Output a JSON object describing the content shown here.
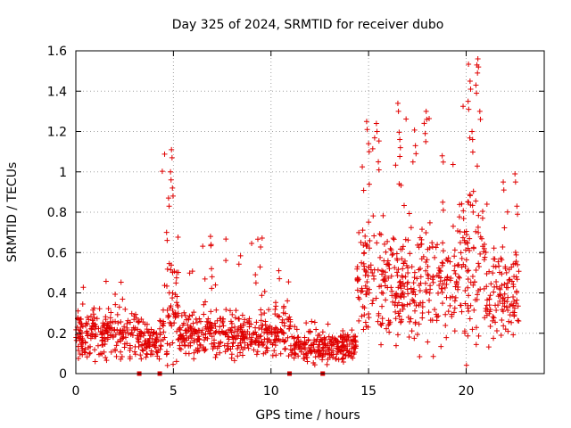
{
  "chart_data": {
    "type": "scatter",
    "title": "Day 325 of 2024, SRMTID for receiver dubo",
    "xlabel": "GPS time / hours",
    "ylabel": "SRMTID / TECUs",
    "xlim": [
      0,
      24
    ],
    "ylim": [
      0,
      1.6
    ],
    "grid": true,
    "x_ticks": [
      0,
      5,
      10,
      15,
      20
    ],
    "x_tick_labels": [
      "0",
      "5",
      "10",
      "15",
      "20"
    ],
    "y_ticks": [
      0,
      0.2,
      0.4,
      0.6,
      0.8,
      1.0,
      1.2,
      1.4,
      1.6
    ],
    "y_tick_labels": [
      "0",
      "0.2",
      "0.4",
      "0.6",
      "0.8",
      "1",
      "1.2",
      "1.4",
      "1.6"
    ],
    "marker": "plus",
    "series": [
      {
        "name": "SRMTID",
        "color": "#e00000",
        "envelope": {
          "description": "Approximate distribution of the plotted points (hour ranges with typical and peak values)",
          "segments": [
            {
              "x_range": [
                0.0,
                3.3
              ],
              "base": 0.2,
              "spread": 0.09,
              "peak": 0.47
            },
            {
              "x_range": [
                3.3,
                4.4
              ],
              "base": 0.15,
              "spread": 0.06,
              "peak": 0.27
            },
            {
              "x_range": [
                4.4,
                5.3
              ],
              "base": 0.3,
              "spread": 0.2,
              "peak": 1.11
            },
            {
              "x_range": [
                5.3,
                10.0
              ],
              "base": 0.19,
              "spread": 0.08,
              "peak": 0.68
            },
            {
              "x_range": [
                10.0,
                11.0
              ],
              "base": 0.2,
              "spread": 0.09,
              "peak": 0.51
            },
            {
              "x_range": [
                11.0,
                14.4
              ],
              "base": 0.13,
              "spread": 0.06,
              "peak": 0.26
            },
            {
              "x_range": [
                14.4,
                16.0
              ],
              "base": 0.45,
              "spread": 0.2,
              "peak": 1.25
            },
            {
              "x_range": [
                16.0,
                19.5
              ],
              "base": 0.42,
              "spread": 0.2,
              "peak": 1.34
            },
            {
              "x_range": [
                19.5,
                21.0
              ],
              "base": 0.55,
              "spread": 0.28,
              "peak": 1.56
            },
            {
              "x_range": [
                21.0,
                22.7
              ],
              "base": 0.4,
              "spread": 0.18,
              "peak": 0.99
            }
          ]
        },
        "highlight_points": [
          {
            "x": 4.65,
            "y": 0.7
          },
          {
            "x": 4.75,
            "y": 0.87
          },
          {
            "x": 4.85,
            "y": 1.0
          },
          {
            "x": 4.9,
            "y": 1.11
          },
          {
            "x": 4.95,
            "y": 0.92
          },
          {
            "x": 6.9,
            "y": 0.68
          },
          {
            "x": 6.95,
            "y": 0.52
          },
          {
            "x": 9.2,
            "y": 0.49
          },
          {
            "x": 10.4,
            "y": 0.51
          },
          {
            "x": 14.9,
            "y": 1.25
          },
          {
            "x": 15.0,
            "y": 1.14
          },
          {
            "x": 15.4,
            "y": 1.24
          },
          {
            "x": 15.5,
            "y": 1.05
          },
          {
            "x": 16.5,
            "y": 1.34
          },
          {
            "x": 16.6,
            "y": 1.16
          },
          {
            "x": 17.4,
            "y": 1.13
          },
          {
            "x": 17.9,
            "y": 1.19
          },
          {
            "x": 17.95,
            "y": 1.3
          },
          {
            "x": 18.8,
            "y": 0.85
          },
          {
            "x": 20.1,
            "y": 1.35
          },
          {
            "x": 20.2,
            "y": 1.45
          },
          {
            "x": 20.3,
            "y": 1.2
          },
          {
            "x": 20.5,
            "y": 1.43
          },
          {
            "x": 20.55,
            "y": 1.53
          },
          {
            "x": 20.6,
            "y": 1.56
          },
          {
            "x": 20.7,
            "y": 1.3
          },
          {
            "x": 21.9,
            "y": 0.95
          },
          {
            "x": 22.5,
            "y": 0.99
          },
          {
            "x": 22.6,
            "y": 0.83
          }
        ],
        "zero_points": [
          3.25,
          4.3,
          10.95,
          12.65
        ]
      }
    ]
  }
}
